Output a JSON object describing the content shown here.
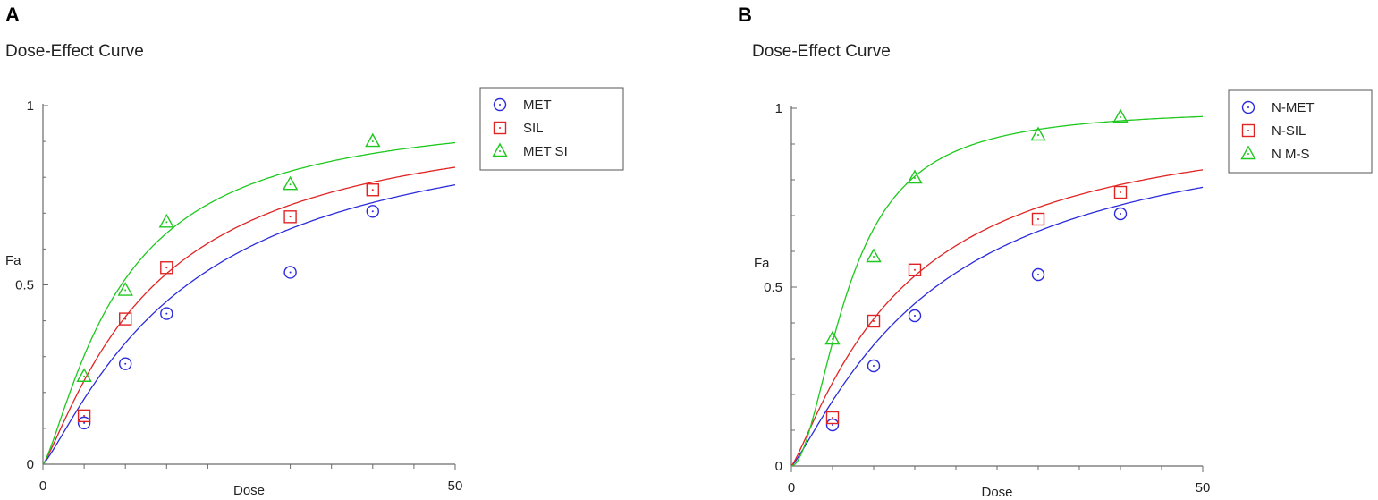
{
  "chart_data": [
    {
      "panel_label": "A",
      "type": "scatter",
      "title": "Dose-Effect Curve",
      "xlabel": "Dose",
      "ylabel": "Fa",
      "xlim": [
        0,
        50
      ],
      "ylim": [
        0,
        1
      ],
      "x_tick_labels": [
        "0",
        "50"
      ],
      "y_tick_labels": [
        "0",
        "0.5",
        "1"
      ],
      "legend_position": "top-right",
      "series": [
        {
          "name": "MET",
          "color": "#2b2bdc",
          "marker": "circle",
          "x": [
            5,
            10,
            15,
            30,
            40
          ],
          "y": [
            0.115,
            0.28,
            0.42,
            0.535,
            0.705
          ],
          "fit": {
            "dm": 17.5,
            "m": 1.2
          }
        },
        {
          "name": "SIL",
          "color": "#e02424",
          "marker": "square",
          "x": [
            5,
            10,
            15,
            30,
            40
          ],
          "y": [
            0.135,
            0.405,
            0.548,
            0.69,
            0.765
          ],
          "fit": {
            "dm": 13.5,
            "m": 1.2
          }
        },
        {
          "name": "MET SI",
          "color": "#1ec81e",
          "marker": "triangle",
          "x": [
            5,
            10,
            15,
            30,
            40
          ],
          "y": [
            0.245,
            0.485,
            0.675,
            0.78,
            0.9
          ],
          "fit": {
            "dm": 9.5,
            "m": 1.3
          }
        }
      ]
    },
    {
      "panel_label": "B",
      "type": "scatter",
      "title": "Dose-Effect Curve",
      "xlabel": "Dose",
      "ylabel": "Fa",
      "xlim": [
        0,
        50
      ],
      "ylim": [
        0,
        1
      ],
      "x_tick_labels": [
        "0",
        "50"
      ],
      "y_tick_labels": [
        "0",
        "0.5",
        "1"
      ],
      "legend_position": "top-right",
      "series": [
        {
          "name": "N-MET",
          "color": "#2b2bdc",
          "marker": "circle",
          "x": [
            5,
            10,
            15,
            30,
            40
          ],
          "y": [
            0.115,
            0.28,
            0.42,
            0.535,
            0.705
          ],
          "fit": {
            "dm": 17.5,
            "m": 1.2
          }
        },
        {
          "name": "N-SIL",
          "color": "#e02424",
          "marker": "square",
          "x": [
            5,
            10,
            15,
            30,
            40
          ],
          "y": [
            0.135,
            0.405,
            0.548,
            0.69,
            0.765
          ],
          "fit": {
            "dm": 13.5,
            "m": 1.2
          }
        },
        {
          "name": "N M-S",
          "color": "#1ec81e",
          "marker": "triangle",
          "x": [
            5,
            10,
            15,
            30,
            40
          ],
          "y": [
            0.355,
            0.585,
            0.805,
            0.925,
            0.975
          ],
          "fit": {
            "dm": 7.0,
            "m": 1.9
          }
        }
      ]
    }
  ]
}
